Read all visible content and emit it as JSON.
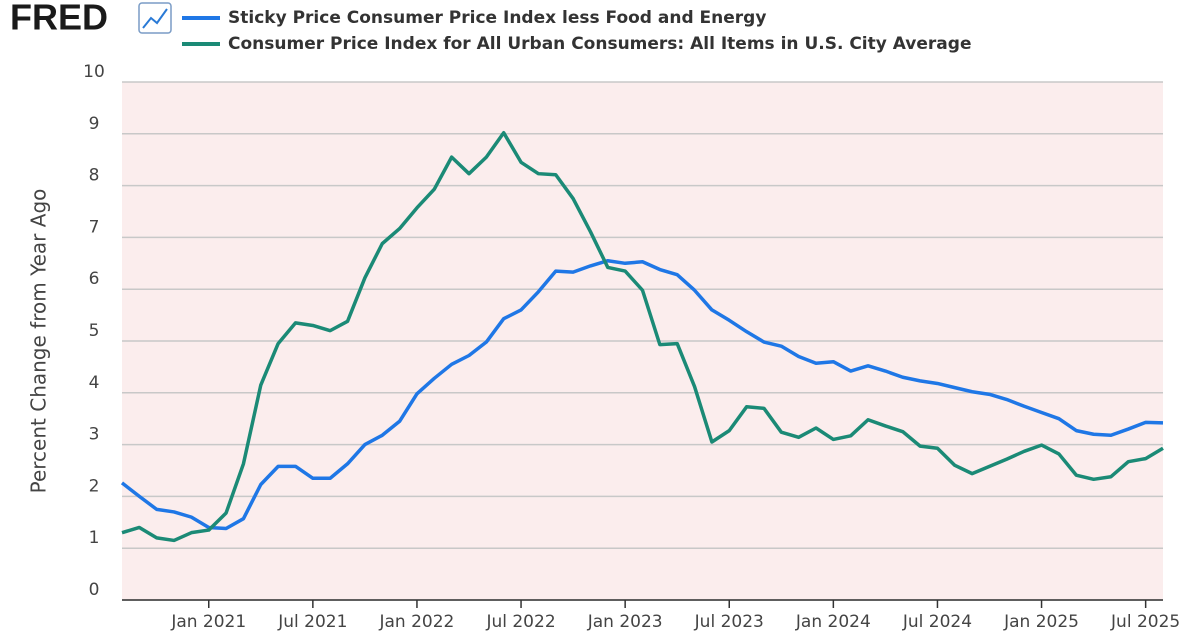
{
  "brand": "FRED",
  "chart_data": {
    "type": "line",
    "y_label": "Percent Change from Year Ago",
    "x": [
      "2020-08",
      "2020-09",
      "2020-10",
      "2020-11",
      "2020-12",
      "2021-01",
      "2021-02",
      "2021-03",
      "2021-04",
      "2021-05",
      "2021-06",
      "2021-07",
      "2021-08",
      "2021-09",
      "2021-10",
      "2021-11",
      "2021-12",
      "2022-01",
      "2022-02",
      "2022-03",
      "2022-04",
      "2022-05",
      "2022-06",
      "2022-07",
      "2022-08",
      "2022-09",
      "2022-10",
      "2022-11",
      "2022-12",
      "2023-01",
      "2023-02",
      "2023-03",
      "2023-04",
      "2023-05",
      "2023-06",
      "2023-07",
      "2023-08",
      "2023-09",
      "2023-10",
      "2023-11",
      "2023-12",
      "2024-01",
      "2024-02",
      "2024-03",
      "2024-04",
      "2024-05",
      "2024-06",
      "2024-07",
      "2024-08",
      "2024-09",
      "2024-10",
      "2024-11",
      "2024-12",
      "2025-01",
      "2025-02",
      "2025-03",
      "2025-04",
      "2025-05",
      "2025-06",
      "2025-07",
      "2025-08"
    ],
    "series": [
      {
        "name": "Sticky Price Consumer Price Index less Food and Energy",
        "color": "#1f77e6",
        "values": [
          2.26,
          2.0,
          1.75,
          1.7,
          1.6,
          1.4,
          1.38,
          1.57,
          2.23,
          2.58,
          2.58,
          2.35,
          2.35,
          2.63,
          3.0,
          3.18,
          3.45,
          3.98,
          4.28,
          4.55,
          4.72,
          4.98,
          5.43,
          5.6,
          5.95,
          6.35,
          6.33,
          6.45,
          6.55,
          6.5,
          6.53,
          6.38,
          6.28,
          5.98,
          5.6,
          5.4,
          5.18,
          4.98,
          4.9,
          4.7,
          4.57,
          4.6,
          4.42,
          4.52,
          4.42,
          4.3,
          4.23,
          4.18,
          4.1,
          4.02,
          3.97,
          3.87,
          3.74,
          3.62,
          3.5,
          3.27,
          3.2,
          3.18,
          3.3,
          3.43,
          3.42
        ]
      },
      {
        "name": "Consumer Price Index for All Urban Consumers: All Items in U.S. City Average",
        "color": "#1b8a76",
        "values": [
          1.3,
          1.4,
          1.2,
          1.15,
          1.3,
          1.35,
          1.68,
          2.63,
          4.15,
          4.95,
          5.35,
          5.3,
          5.2,
          5.38,
          6.22,
          6.88,
          7.17,
          7.57,
          7.93,
          8.55,
          8.23,
          8.55,
          9.02,
          8.45,
          8.23,
          8.21,
          7.75,
          7.11,
          6.42,
          6.35,
          5.98,
          4.93,
          4.95,
          4.12,
          3.05,
          3.27,
          3.73,
          3.7,
          3.24,
          3.14,
          3.32,
          3.1,
          3.17,
          3.48,
          3.36,
          3.25,
          2.97,
          2.93,
          2.6,
          2.44,
          2.58,
          2.72,
          2.87,
          2.99,
          2.82,
          2.41,
          2.33,
          2.38,
          2.67,
          2.73,
          2.93
        ]
      }
    ],
    "xlim": [
      "2020-08",
      "2025-08"
    ],
    "xticks": [
      {
        "value": "2021-01",
        "label": "Jan 2021"
      },
      {
        "value": "2021-07",
        "label": "Jul 2021"
      },
      {
        "value": "2022-01",
        "label": "Jan 2022"
      },
      {
        "value": "2022-07",
        "label": "Jul 2022"
      },
      {
        "value": "2023-01",
        "label": "Jan 2023"
      },
      {
        "value": "2023-07",
        "label": "Jul 2023"
      },
      {
        "value": "2024-01",
        "label": "Jan 2024"
      },
      {
        "value": "2024-07",
        "label": "Jul 2024"
      },
      {
        "value": "2025-01",
        "label": "Jan 2025"
      },
      {
        "value": "2025-07",
        "label": "Jul 2025"
      }
    ],
    "ylim": [
      0,
      10
    ],
    "yticks": [
      0,
      1,
      2,
      3,
      4,
      5,
      6,
      7,
      8,
      9,
      10
    ],
    "grid": true,
    "background": "#fbeded"
  }
}
